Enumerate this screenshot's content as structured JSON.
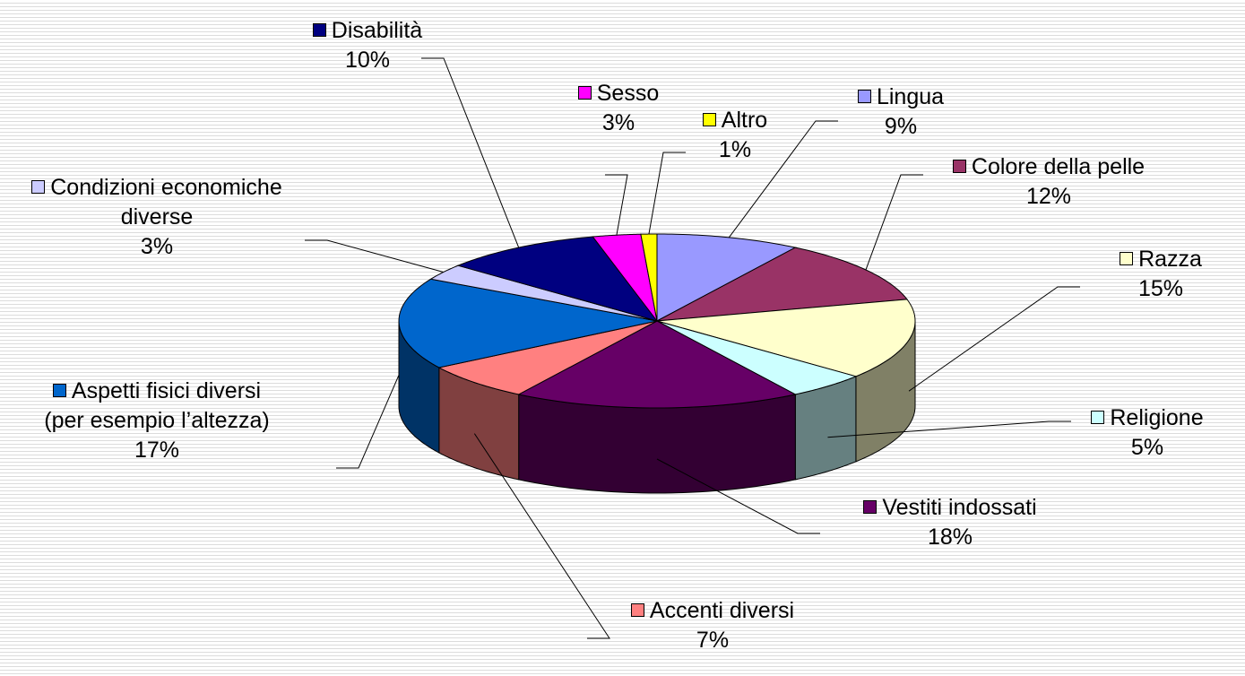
{
  "chart_data": {
    "type": "pie",
    "categories": [
      "Lingua",
      "Colore della pelle",
      "Razza",
      "Religione",
      "Vestiti indossati",
      "Accenti diversi",
      "Aspetti fisici diversi (per esempio l’altezza)",
      "Condizioni economiche diverse",
      "Disabilità",
      "Sesso",
      "Altro"
    ],
    "values": [
      9,
      12,
      15,
      5,
      18,
      7,
      17,
      3,
      10,
      3,
      1
    ],
    "value_labels": [
      "9%",
      "12%",
      "15%",
      "5%",
      "18%",
      "7%",
      "17%",
      "3%",
      "10%",
      "3%",
      "1%"
    ],
    "colors": [
      "#9999ff",
      "#993366",
      "#ffffcc",
      "#ccffff",
      "#660066",
      "#ff8080",
      "#0066cc",
      "#ccccff",
      "#000080",
      "#ff00ff",
      "#ffff00"
    ]
  }
}
